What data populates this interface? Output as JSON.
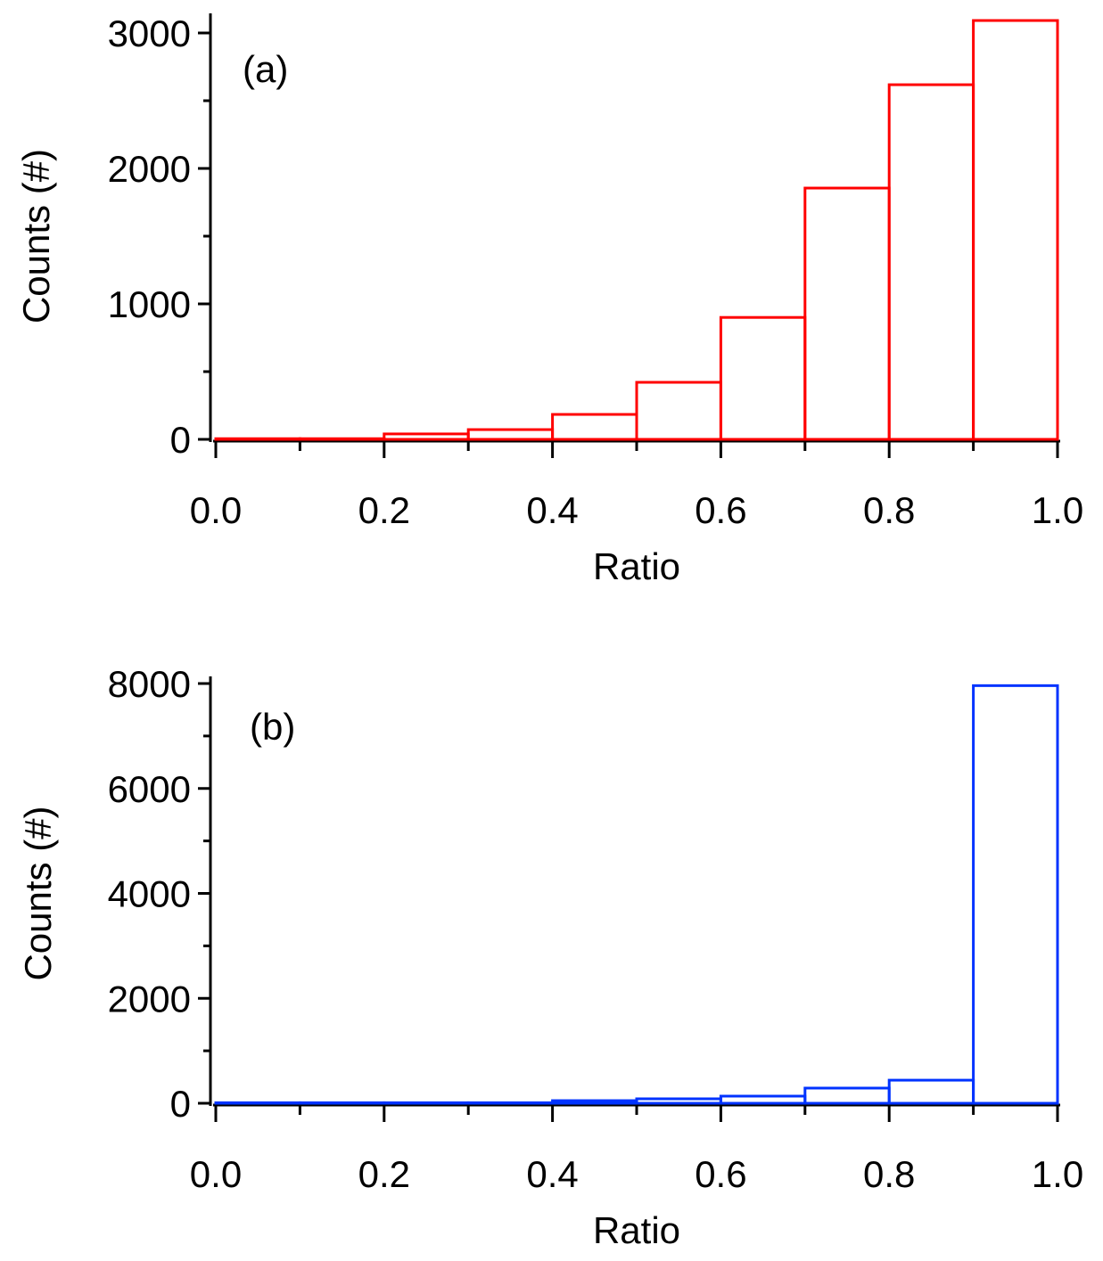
{
  "chart_data": [
    {
      "type": "bar",
      "style": "histogram-step-outline",
      "panel_label": "(a)",
      "bin_edges": [
        0.0,
        0.1,
        0.2,
        0.3,
        0.4,
        0.5,
        0.6,
        0.7,
        0.8,
        0.9,
        1.0
      ],
      "values": [
        5,
        5,
        40,
        72,
        184,
        421,
        900,
        1855,
        2618,
        3092
      ],
      "color": "#ff0000",
      "xlabel": "Ratio",
      "ylabel": "Counts (#)",
      "xlim": [
        0,
        1.0
      ],
      "ylim": [
        0,
        3000
      ],
      "xticks": [
        "0.0",
        "0.2",
        "0.4",
        "0.6",
        "0.8",
        "1.0"
      ],
      "yticks": [
        "0",
        "1000",
        "2000",
        "3000"
      ],
      "grid": false
    },
    {
      "type": "bar",
      "style": "histogram-step-outline",
      "panel_label": "(b)",
      "bin_edges": [
        0.0,
        0.1,
        0.2,
        0.3,
        0.4,
        0.5,
        0.6,
        0.7,
        0.8,
        0.9,
        1.0
      ],
      "values": [
        10,
        10,
        10,
        10,
        50,
        85,
        136,
        289,
        440,
        7960
      ],
      "color": "#0033ff",
      "xlabel": "Ratio",
      "ylabel": "Counts (#)",
      "xlim": [
        0,
        1.0
      ],
      "ylim": [
        0,
        8000
      ],
      "xticks": [
        "0.0",
        "0.2",
        "0.4",
        "0.6",
        "0.8",
        "1.0"
      ],
      "yticks": [
        "0",
        "2000",
        "4000",
        "6000",
        "8000"
      ],
      "grid": false
    }
  ]
}
